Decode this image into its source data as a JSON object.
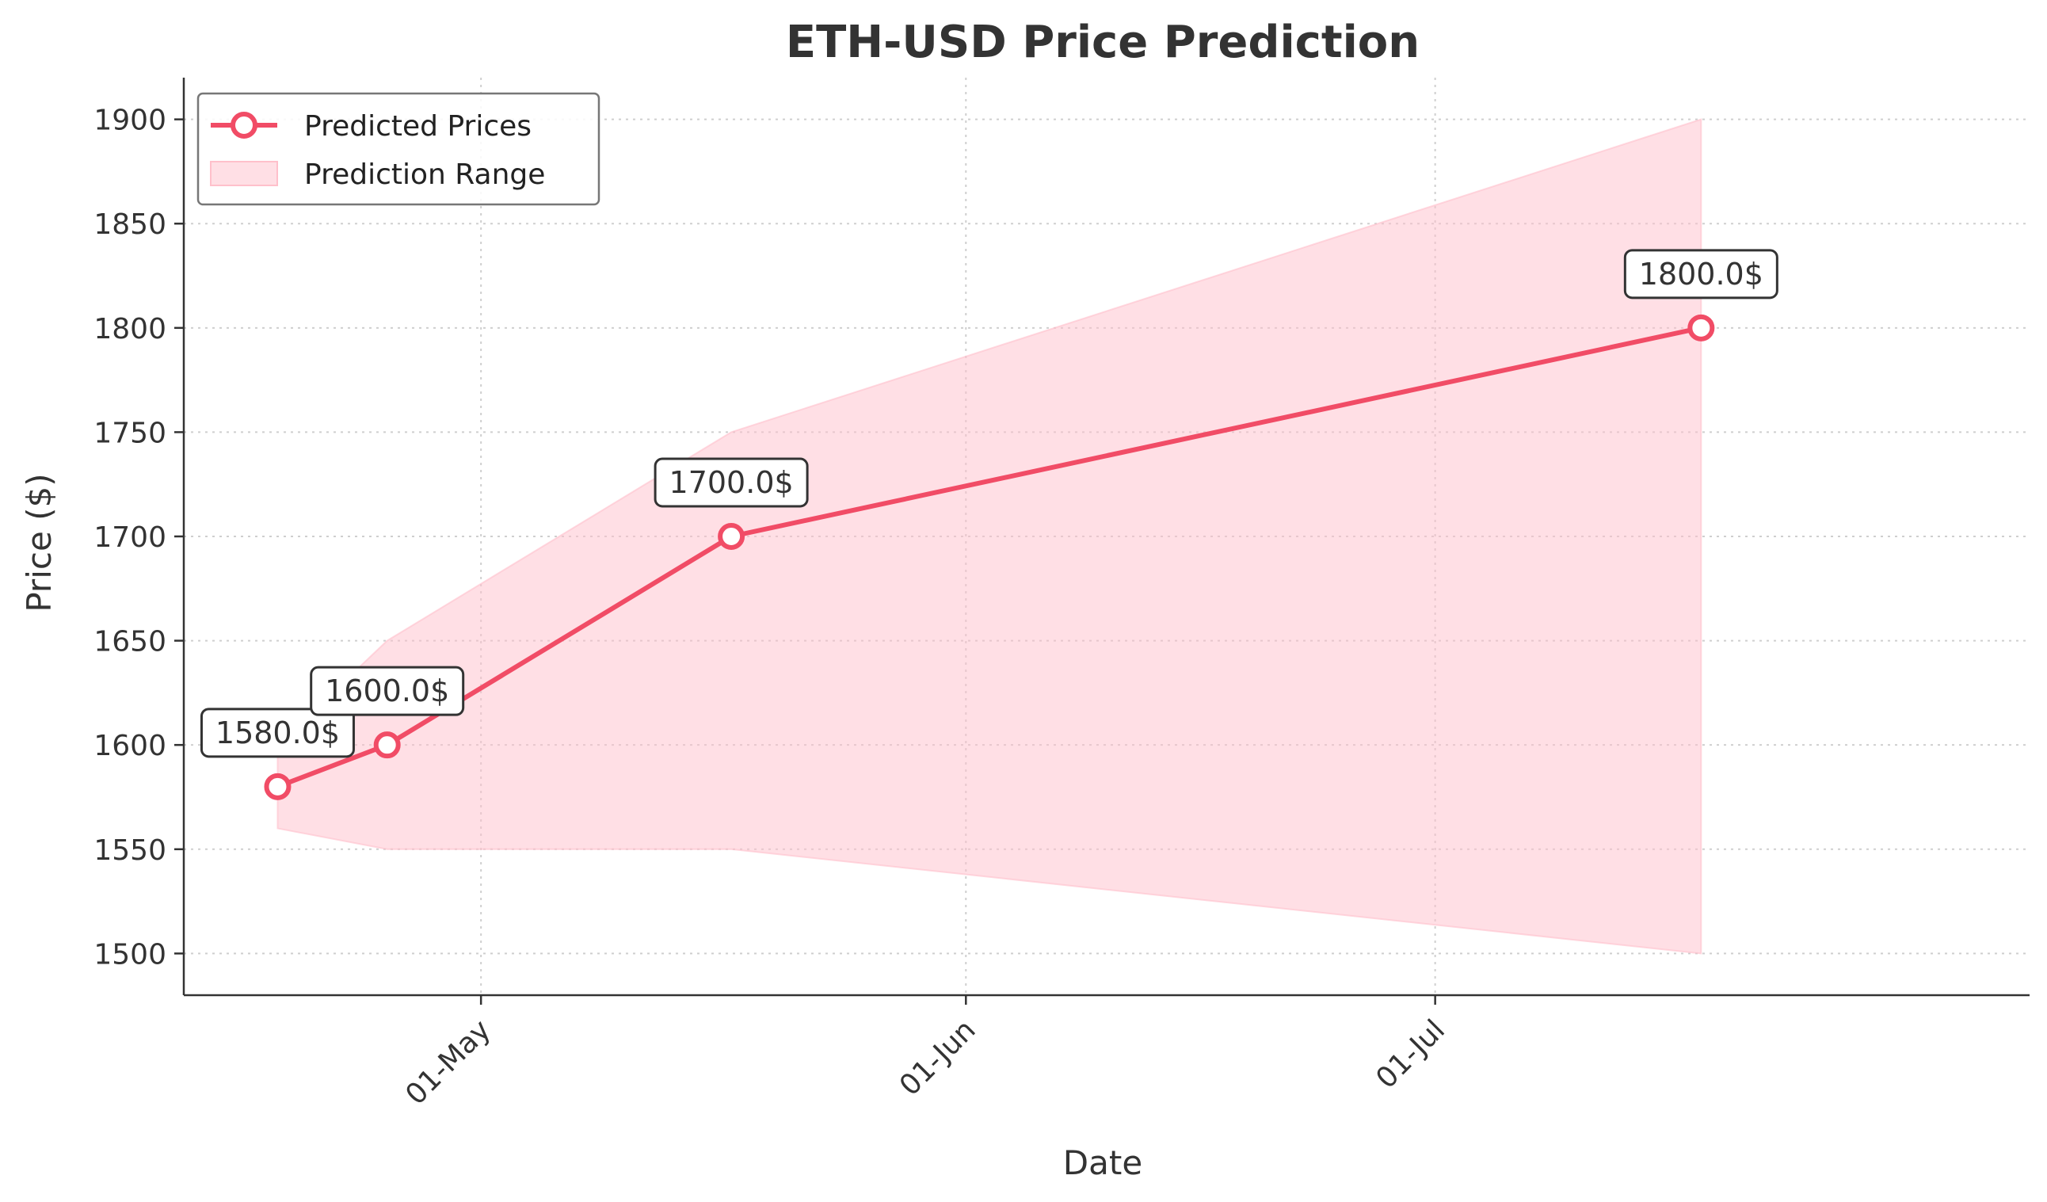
{
  "chart_data": {
    "type": "line",
    "title": "ETH-USD Price Prediction",
    "xlabel": "Date",
    "ylabel": "Price ($)",
    "x_ticks": [
      {
        "date": "2023-05-01",
        "label": "01-May"
      },
      {
        "date": "2023-06-01",
        "label": "01-Jun"
      },
      {
        "date": "2023-07-01",
        "label": "01-Jul"
      }
    ],
    "y_ticks": [
      1500,
      1550,
      1600,
      1650,
      1700,
      1750,
      1800,
      1850,
      1900
    ],
    "xlim": [
      "2023-04-12",
      "2023-08-08"
    ],
    "ylim": [
      1480,
      1920
    ],
    "grid": true,
    "legend_position": "top-left",
    "series": [
      {
        "name": "Predicted Prices",
        "color": "#f14c66",
        "points": [
          {
            "x": "2023-04-18",
            "y": 1580,
            "label": "1580.0$"
          },
          {
            "x": "2023-04-25",
            "y": 1600,
            "label": "1600.0$"
          },
          {
            "x": "2023-05-17",
            "y": 1700,
            "label": "1700.0$"
          },
          {
            "x": "2023-07-18",
            "y": 1800,
            "label": "1800.0$"
          }
        ]
      }
    ],
    "range": {
      "name": "Prediction Range",
      "color": "#ffc0cb",
      "points": [
        {
          "x": "2023-04-18",
          "low": 1560,
          "high": 1600
        },
        {
          "x": "2023-04-25",
          "low": 1550,
          "high": 1650
        },
        {
          "x": "2023-05-17",
          "low": 1550,
          "high": 1750
        },
        {
          "x": "2023-07-18",
          "low": 1500,
          "high": 1900
        }
      ]
    }
  }
}
